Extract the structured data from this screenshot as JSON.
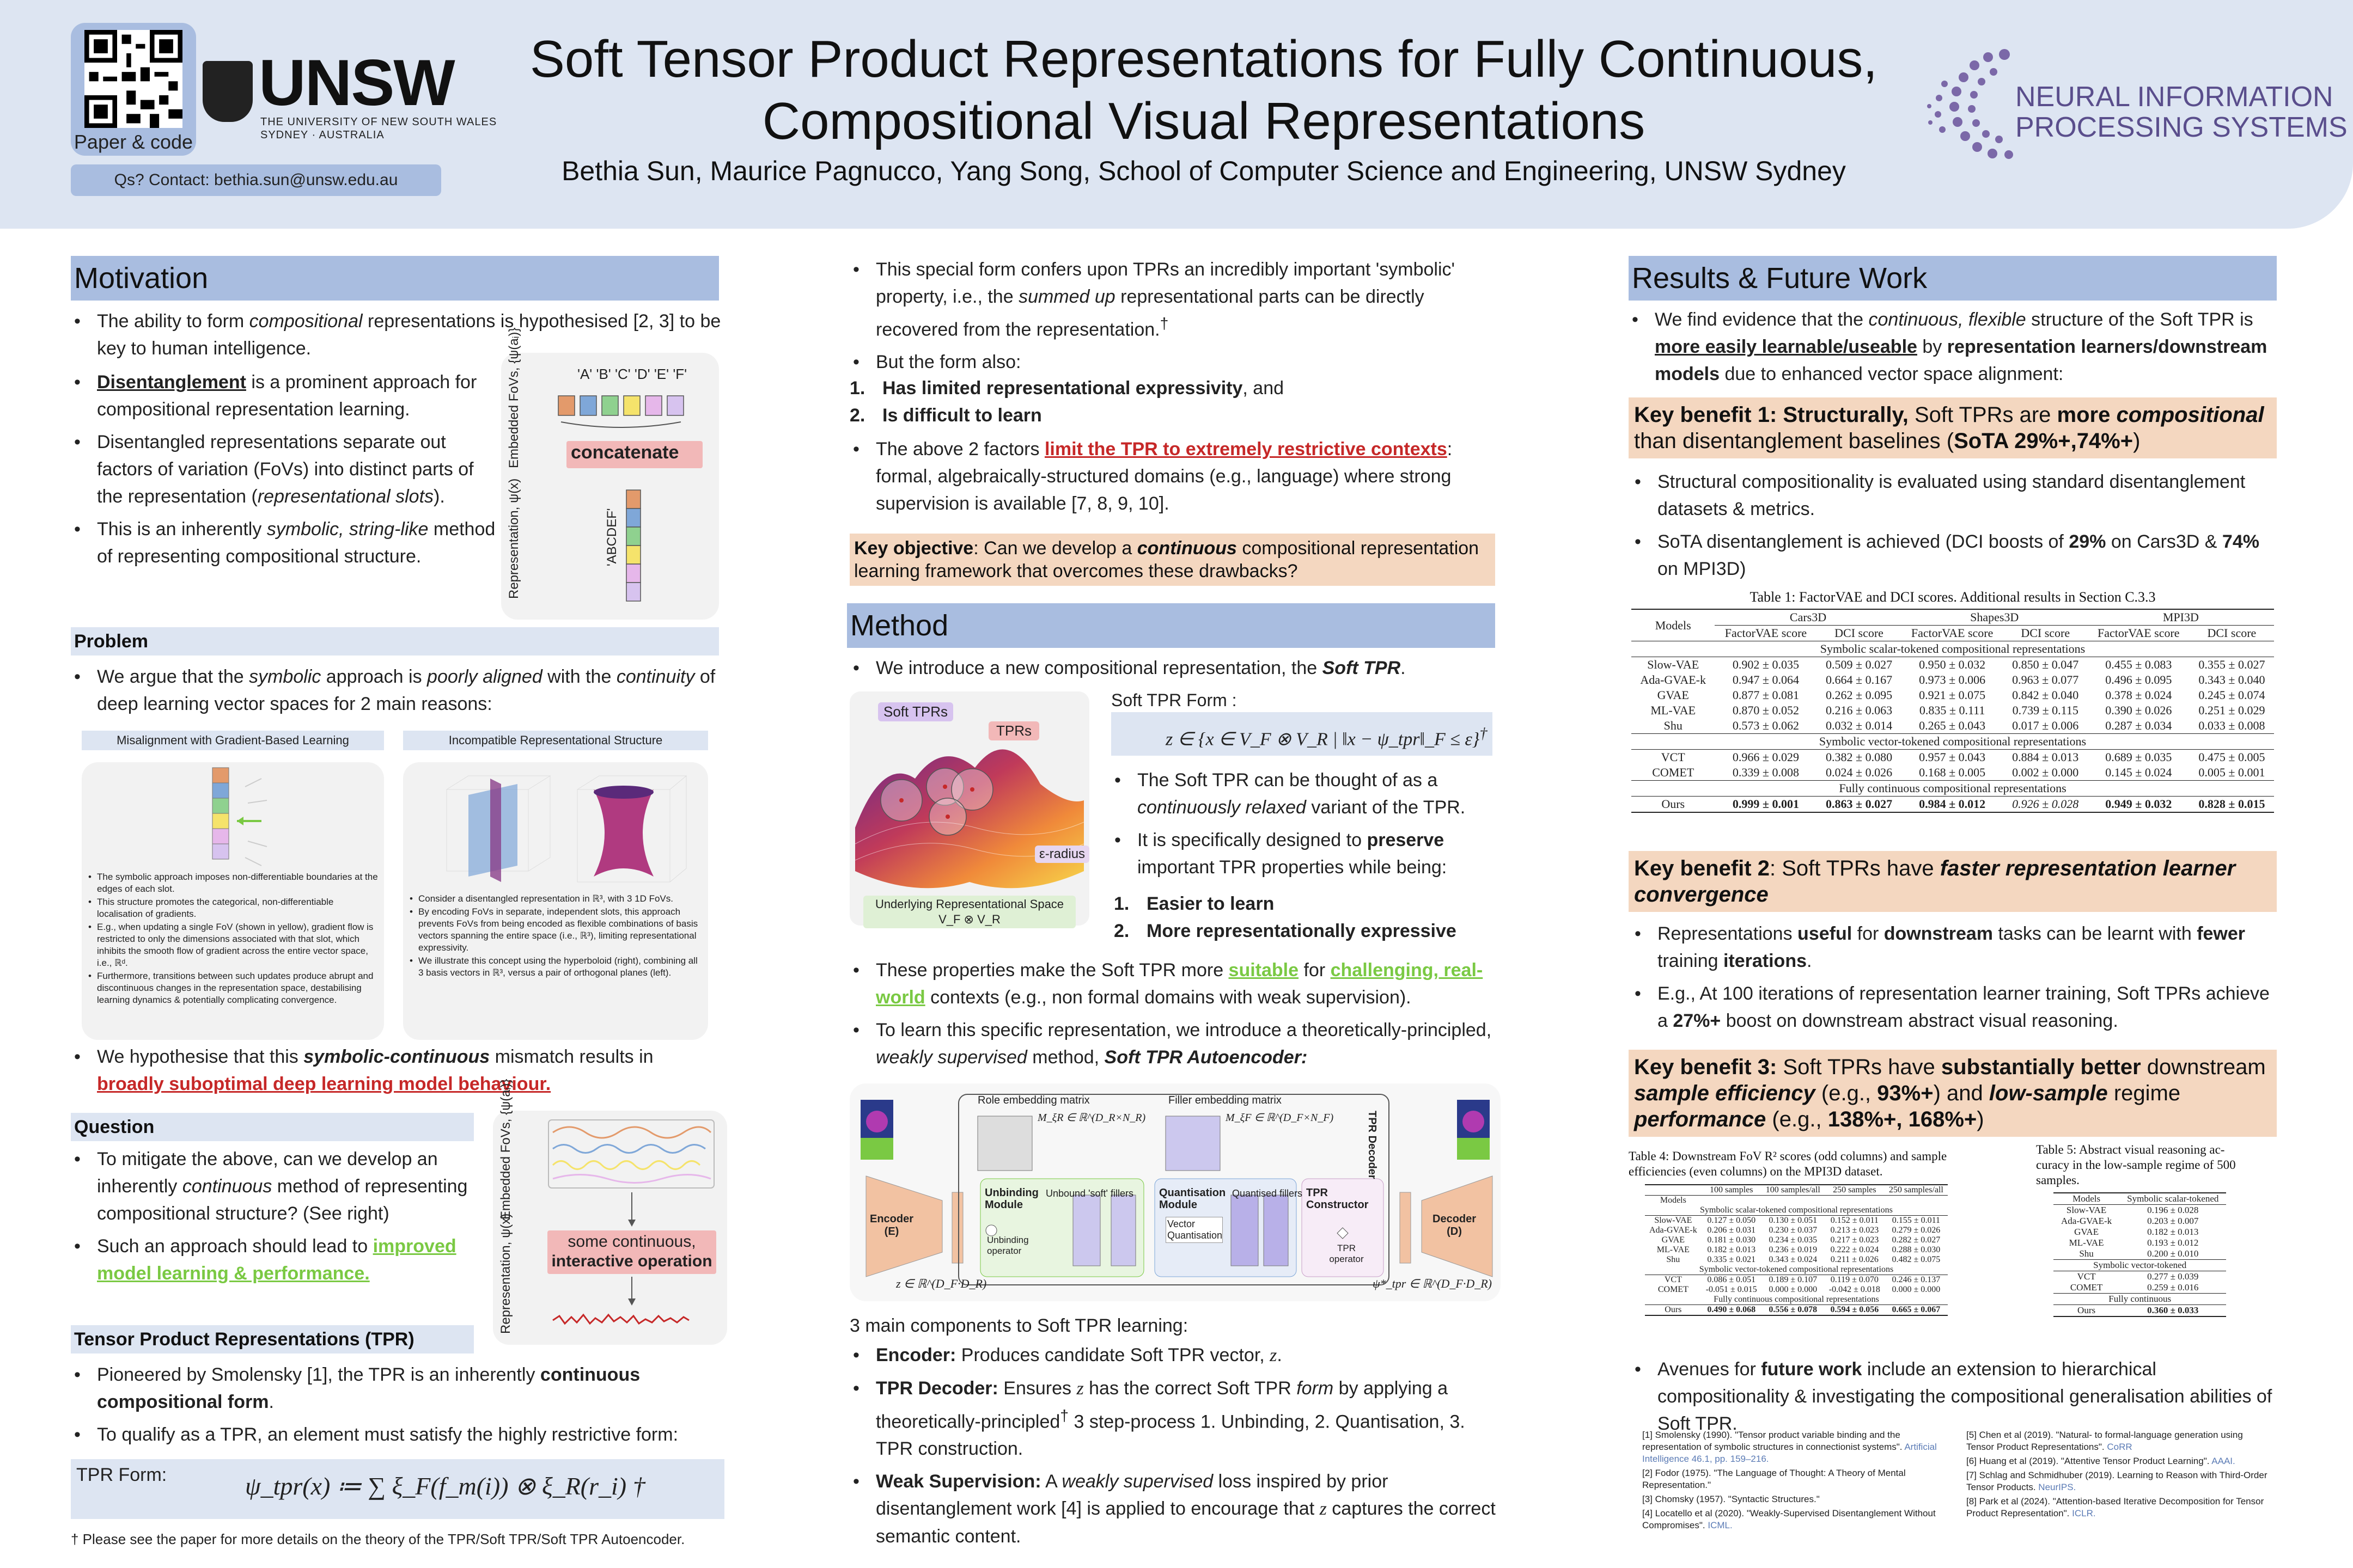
{
  "header": {
    "qr_caption": "Paper & code",
    "contact": "Qs? Contact: bethia.sun@unsw.edu.au",
    "unsw_word": "UNSW",
    "unsw_sub1": "THE UNIVERSITY OF NEW SOUTH WALES",
    "unsw_sub2": "SYDNEY · AUSTRALIA",
    "title_line1": "Soft Tensor Product Representations for Fully Continuous,",
    "title_line2": "Compositional Visual Representations",
    "authors": "Bethia Sun, Maurice Pagnucco, Yang Song, School of Computer Science and Engineering, UNSW Sydney",
    "neurips1": "NEURAL INFORMATION",
    "neurips2": "PROCESSING SYSTEMS"
  },
  "motivation": {
    "heading": "Motivation",
    "b1a": "The ability to form ",
    "b1b": "compositional",
    "b1c": " representations is hypothesised [2, 3]  to be key to human intelligence.",
    "b2a": "Disentanglement",
    "b2b": " is a prominent approach for compositional representation learning.",
    "b3a": "Disentangled representations separate out factors of variation (FoVs) into distinct parts of the representation (",
    "b3b": "representational slots",
    "b3c": ").",
    "b4a": "This is an inherently ",
    "b4b": "symbolic, string-like",
    "b4c": " method of representing compositional structure.",
    "fig_top": "'A' 'B' 'C' 'D' 'E' 'F'",
    "fig_label1": "Embedded FoVs, {ψ(aᵢ)}",
    "fig_concat": "concatenate",
    "fig_label2": "Representation, ψ(x)",
    "fig_abcdef": "'ABCDEF'"
  },
  "problem": {
    "heading": "Problem",
    "b1a": "We argue that the ",
    "b1b": "symbolic",
    "b1c": " approach is ",
    "b1d": "poorly aligned",
    "b1e": " with the ",
    "b1f": "continuity",
    "b1g": " of deep learning vector spaces for 2 main reasons:",
    "panel1_title": "Misalignment with Gradient-Based Learning",
    "panel2_title": "Incompatible Representational Structure",
    "p1_1": "The symbolic approach imposes non-differentiable boundaries at the edges of each slot.",
    "p1_2": "This structure promotes the categorical, non-differentiable localisation of gradients.",
    "p1_3": "E.g., when updating a single FoV (shown in yellow), gradient flow is restricted to only the dimensions associated with that slot, which inhibits the smooth flow of gradient across the entire vector space, i.e., ℝᵈ.",
    "p1_4": "Furthermore, transitions between such updates produce abrupt and discontinuous changes in the representation space, destabilising learning dynamics & potentially complicating convergence.",
    "p2_1": "Consider a disentangled representation in ℝ³, with 3 1D FoVs.",
    "p2_2": "By encoding FoVs in separate, independent slots, this approach prevents FoVs from being encoded as flexible combinations of basis vectors spanning the entire space (i.e., ℝ³), limiting representational expressivity.",
    "p2_3": "We illustrate this concept using the hyperboloid (right), combining all 3 basis vectors in ℝ³, versus a pair of orthogonal planes (left).",
    "b2a": "We hypothesise that this ",
    "b2b": "symbolic-continuous",
    "b2c": " mismatch results in ",
    "b2d": "broadly suboptimal deep learning model behaviour."
  },
  "question": {
    "heading": "Question",
    "b1a": "To mitigate the above, can we develop an inherently ",
    "b1b": "continuous",
    "b1c": " method of representing compositional structure? (See right)",
    "b2a": "Such an approach should lead to ",
    "b2b": "improved model learning & performance.",
    "fig_label1": "Embedded FoVs, {ψ(aᵢ)}",
    "fig_box1": "some continuous,",
    "fig_box2": "interactive operation",
    "fig_label2": "Representation, ψ(x)"
  },
  "tpr": {
    "heading": "Tensor Product Representations (TPR)",
    "b1a": "Pioneered by Smolensky [1], the TPR is an inherently ",
    "b1b": "continuous compositional form",
    "b1c": ".",
    "b2": "To qualify as a TPR, an element must satisfy the highly restrictive form:",
    "form_label": "TPR Form:",
    "form_eq": "ψ_tpr(x) ≔ ∑ ξ_F(f_m(i)) ⊗ ξ_R(r_i) †",
    "footnote": "† Please see the paper for more details on the theory of the TPR/Soft TPR/Soft TPR Autoencoder."
  },
  "col2": {
    "b1a": "This special form confers upon TPRs an incredibly important 'symbolic' property, i.e., the ",
    "b1b": "summed up",
    "b1c": " representational parts can be directly recovered from the representation.",
    "dagger": "†",
    "b2": "But the form also:",
    "n1": "1.",
    "n1t": "Has limited representational expressivity",
    "n1e": ", and",
    "n2": "2.",
    "n2t": "Is difficult to learn",
    "b3a": "The above 2 factors ",
    "b3b": "limit the TPR to extremely restrictive contexts",
    "b3c": ": formal, algebraically-structured domains (e.g., language) where strong supervision is available [7, 8, 9, 10].",
    "key_obj_a": "Key objective",
    "key_obj_b": ": Can we develop a ",
    "key_obj_c": "continuous",
    "key_obj_d": " compositional representation learning framework that overcomes these drawbacks?"
  },
  "method": {
    "heading": "Method",
    "b1a": "We introduce a new compositional representation, the ",
    "b1b": "Soft TPR",
    "b1c": ".",
    "fig_soft": "Soft TPRs",
    "fig_tprs": "TPRs",
    "fig_eps": "ε-radius",
    "fig_space1": "Underlying Representational Space",
    "fig_space2": "V_F ⊗ V_R",
    "form_label": "Soft TPR Form :",
    "form_eq": "z ∈ {x ∈ V_F ⊗ V_R | ‖x − ψ_tpr‖_F ≤ ε}",
    "form_dagger": "†",
    "b2a": "The Soft TPR can be thought of as a ",
    "b2b": "continuously relaxed",
    "b2c": " variant of the TPR.",
    "b3a": "It is specifically designed to ",
    "b3b": "preserve",
    "b3c": " important TPR properties while being:",
    "n1": "1.",
    "n1t": "Easier to learn",
    "n2": "2.",
    "n2t": "More representationally expressive",
    "b4a": "These properties make the Soft TPR more ",
    "b4b": "suitable",
    "b4c": " for ",
    "b4d": "challenging, real-world",
    "b4e": " contexts (e.g., non formal domains with weak supervision).",
    "b5a": "To learn this specific representation, we introduce a theoretically-principled, ",
    "b5b": "weakly supervised",
    "b5c": " method, ",
    "b5d": "Soft TPR Autoencoder:",
    "arch": {
      "role": "Role embedding matrix",
      "role_m": "M_ξR ∈ ℝ^(D_R×N_R)",
      "filler": "Filler embedding matrix",
      "filler_m": "M_ξF ∈ ℝ^(D_F×N_F)",
      "decoder_tpr": "TPR Decoder",
      "encoder": "Encoder",
      "encoder_e": "(E)",
      "decoder": "Decoder",
      "decoder_d": "(D)",
      "unbind": "Unbinding Module",
      "unbound": "Unbound 'soft' fillers",
      "unbind_op": "Unbinding operator",
      "quant": "Quantisation Module",
      "quantised": "Quantised fillers",
      "vq": "Vector Quantisation",
      "tprc": "TPR Constructor",
      "tpr_op": "TPR operator",
      "z": "z ∈ ℝ^(D_F·D_R)",
      "psi": "ψ*_tpr ∈ ℝ^(D_F·D_R)"
    },
    "components": "3 main components to Soft TPR learning:",
    "c1a": "Encoder:",
    "c1b": " Produces candidate Soft TPR vector, ",
    "c1c": "z",
    "c1d": ".",
    "c2a": "TPR Decoder:",
    "c2b": " Ensures ",
    "c2c": "z",
    "c2d": " has the correct Soft TPR ",
    "c2e": "form",
    "c2f": " by applying a theoretically-principled",
    "c2g": "†",
    "c2h": " 3 step-process 1. Unbinding, 2. Quantisation, 3. TPR construction.",
    "c3a": "Weak Supervision:",
    "c3b": " A ",
    "c3c": "weakly supervised",
    "c3d": " loss inspired by prior disentanglement work [4] is applied to encourage that ",
    "c3e": "z",
    "c3f": " captures the correct semantic content."
  },
  "results": {
    "heading": "Results & Future Work",
    "b1a": "We find evidence that the ",
    "b1b": "continuous, flexible",
    "b1c": " structure of the Soft TPR is ",
    "b1d": "more easily learnable/useable",
    "b1e": " by ",
    "b1f": "representation learners/downstream models",
    "b1g": " due to enhanced vector space alignment:",
    "k1a": "Key benefit 1: Structurally,",
    "k1b": " Soft TPRs are ",
    "k1c": "more ",
    "k1d": "compositional",
    "k1e": " than disentanglement baselines (",
    "k1f": "SoTA 29%+,74%+",
    "k1g": ")",
    "r1": "Structural compositionality is evaluated using standard disentanglement datasets & metrics.",
    "r2a": "SoTA disentanglement is achieved (DCI boosts of ",
    "r2b": "29%",
    "r2c": " on Cars3D & ",
    "r2d": "74%",
    "r2e": " on MPI3D)",
    "k2a": "Key benefit 2",
    "k2b": ": Soft TPRs have ",
    "k2c": "faster representation learner convergence",
    "r3a": "Representations ",
    "r3b": "useful",
    "r3c": " for ",
    "r3d": "downstream",
    "r3e": " tasks can be learnt with ",
    "r3f": "fewer",
    "r3g": " training ",
    "r3h": "iterations",
    "r3i": ".",
    "r4a": "E.g., At 100 iterations of representation learner training, Soft TPRs achieve a ",
    "r4b": "27%+",
    "r4c": " boost on downstream abstract visual reasoning.",
    "k3a": "Key benefit 3:",
    "k3b": " Soft TPRs have ",
    "k3c": "substantially better",
    "k3d": " downstream ",
    "k3e": "sample efficiency",
    "k3f": " (e.g.,  ",
    "k3g": "93%+",
    "k3h": ") and ",
    "k3i": "low-sample",
    "k3j": " regime ",
    "k3k": "performance",
    "k3l": " (e.g., ",
    "k3m": "138%+, 168%+",
    "k3n": ")",
    "r5a": "Avenues for ",
    "r5b": "future work",
    "r5c": " include an extension to hierarchical compositionality & investigating the compositional generalisation abilities of Soft TPR."
  },
  "table1": {
    "caption": "Table 1: FactorVAE and DCI scores. Additional results in Section C.3.3",
    "models": "Models",
    "datasets": [
      "Cars3D",
      "Shapes3D",
      "MPI3D"
    ],
    "metrics": [
      "FactorVAE score",
      "DCI score",
      "FactorVAE score",
      "DCI score",
      "FactorVAE score",
      "DCI score"
    ],
    "group1": "Symbolic scalar-tokened compositional representations",
    "rows1": [
      [
        "Slow-VAE",
        "0.902 ± 0.035",
        "0.509 ± 0.027",
        "0.950 ± 0.032",
        "0.850 ± 0.047",
        "0.455 ± 0.083",
        "0.355 ± 0.027"
      ],
      [
        "Ada-GVAE-k",
        "0.947 ± 0.064",
        "0.664 ± 0.167",
        "0.973 ± 0.006",
        "0.963 ± 0.077",
        "0.496 ± 0.095",
        "0.343 ± 0.040"
      ],
      [
        "GVAE",
        "0.877 ± 0.081",
        "0.262 ± 0.095",
        "0.921 ± 0.075",
        "0.842 ± 0.040",
        "0.378 ± 0.024",
        "0.245 ± 0.074"
      ],
      [
        "ML-VAE",
        "0.870 ± 0.052",
        "0.216 ± 0.063",
        "0.835 ± 0.111",
        "0.739 ± 0.115",
        "0.390 ± 0.026",
        "0.251 ± 0.029"
      ],
      [
        "Shu",
        "0.573 ± 0.062",
        "0.032 ± 0.014",
        "0.265 ± 0.043",
        "0.017 ± 0.006",
        "0.287 ± 0.034",
        "0.033 ± 0.008"
      ]
    ],
    "group2": "Symbolic vector-tokened compositional representations",
    "rows2": [
      [
        "VCT",
        "0.966 ± 0.029",
        "0.382 ± 0.080",
        "0.957 ± 0.043",
        "0.884 ± 0.013",
        "0.689 ± 0.035",
        "0.475 ± 0.005"
      ],
      [
        "COMET",
        "0.339 ± 0.008",
        "0.024 ± 0.026",
        "0.168 ± 0.005",
        "0.002 ± 0.000",
        "0.145 ± 0.024",
        "0.005 ± 0.001"
      ]
    ],
    "group3": "Fully continuous compositional representations",
    "ours": [
      "Ours",
      "0.999 ± 0.001",
      "0.863 ± 0.027",
      "0.984 ± 0.012",
      "0.926 ± 0.028",
      "0.949 ± 0.032",
      "0.828 ± 0.015"
    ]
  },
  "table4": {
    "caption1": "Table 4: Downstream FoV R² scores (odd columns) and sample",
    "caption2": "efficiencies (even columns) on the MPI3D dataset.",
    "cols": [
      "100 samples",
      "100 samples/all",
      "250 samples",
      "250 samples/all"
    ],
    "models": "Models",
    "group1": "Symbolic scalar-tokened compositional representations",
    "rows1": [
      [
        "Slow-VAE",
        "0.127 ± 0.050",
        "0.130 ± 0.051",
        "0.152 ± 0.011",
        "0.155 ± 0.011"
      ],
      [
        "Ada-GVAE-k",
        "0.206 ± 0.031",
        "0.230 ± 0.037",
        "0.213 ± 0.023",
        "0.279 ± 0.026"
      ],
      [
        "GVAE",
        "0.181 ± 0.030",
        "0.234 ± 0.035",
        "0.217 ± 0.023",
        "0.282 ± 0.027"
      ],
      [
        "ML-VAE",
        "0.182 ± 0.013",
        "0.236 ± 0.019",
        "0.222 ± 0.024",
        "0.288 ± 0.030"
      ],
      [
        "Shu",
        "0.335 ± 0.021",
        "0.343 ± 0.024",
        "0.211 ± 0.026",
        "0.482 ± 0.075"
      ]
    ],
    "group2": "Symbolic vector-tokened compositional representations",
    "rows2": [
      [
        "VCT",
        "0.086 ± 0.051",
        "0.189 ± 0.107",
        "0.119 ± 0.070",
        "0.246 ± 0.137"
      ],
      [
        "COMET",
        "-0.051 ± 0.015",
        "0.000 ± 0.000",
        "-0.042 ± 0.018",
        "0.000 ± 0.000"
      ]
    ],
    "group3": "Fully continuous compositional representations",
    "ours": [
      "Ours",
      "0.490 ± 0.068",
      "0.556 ± 0.078",
      "0.594 ± 0.056",
      "0.665 ± 0.067"
    ]
  },
  "table5": {
    "caption1": "Table 5: Abstract visual reasoning ac-",
    "caption2": "curacy in the low-sample regime of 500",
    "caption3": "samples.",
    "models": "Models",
    "col": "Symbolic scalar-tokened",
    "rows1": [
      [
        "Slow-VAE",
        "0.196 ± 0.028"
      ],
      [
        "Ada-GVAE-k",
        "0.203 ± 0.007"
      ],
      [
        "GVAE",
        "0.182 ± 0.013"
      ],
      [
        "ML-VAE",
        "0.193 ± 0.012"
      ],
      [
        "Shu",
        "0.200 ± 0.010"
      ]
    ],
    "group2": "Symbolic vector-tokened",
    "rows2": [
      [
        "VCT",
        "0.277 ± 0.039"
      ],
      [
        "COMET",
        "0.259 ± 0.016"
      ]
    ],
    "group3": "Fully continuous",
    "ours": [
      "Ours",
      "0.360 ± 0.033"
    ]
  },
  "refs": {
    "r1": "[1] Smolensky (1990). \"Tensor product variable binding and the representation of symbolic structures in connectionist systems\".",
    "r1l": "Artificial Intelligence 46.1, pp. 159–216.",
    "r2": "[2] Fodor (1975). \"The Language of Thought: A Theory of Mental Representation.\"",
    "r3": "[3] Chomsky (1957). \"Syntactic Structures.\"",
    "r4": "[4] Locatello et al (2020). \"Weakly-Supervised Disentanglement Without Compromises\".",
    "r4l": "ICML.",
    "r5": "[5] Chen et al (2019). \"Natural- to formal-language generation using Tensor Product Representations\".",
    "r5l": "CoRR",
    "r6": "[6] Huang et al (2019). \"Attentive Tensor Product Learning\".",
    "r6l": "AAAI.",
    "r7": "[7] Schlag and Schmidhuber (2019). Learning to Reason with Third-Order Tensor Products.",
    "r7l": "NeurIPS.",
    "r8": "[8] Park et al (2024). \"Attention-based Iterative Decomposition for Tensor Product Representation\".",
    "r8l": "ICLR."
  },
  "colors": {
    "section": "#a9bde0",
    "light": "#dde5f2",
    "key": "#f4d7c0",
    "red": "#c62828",
    "green": "#7ac943"
  }
}
